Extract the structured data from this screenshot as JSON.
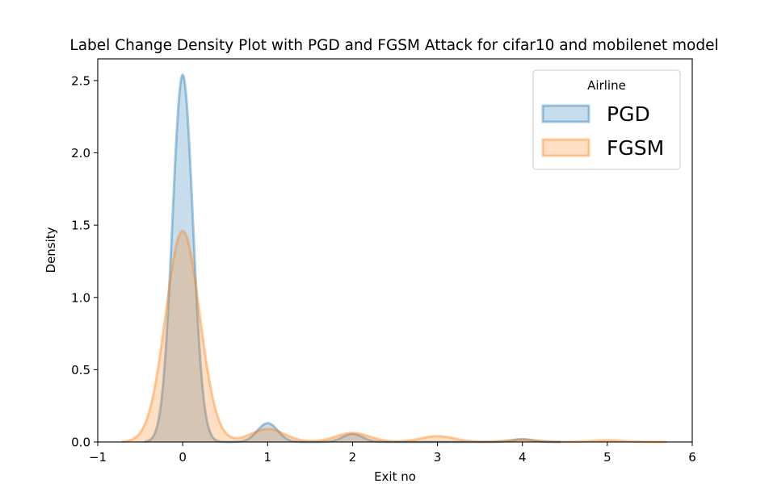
{
  "chart_data": {
    "type": "area",
    "title": "Label Change Density Plot with PGD and FGSM Attack for cifar10 and  mobilenet model",
    "xlabel": "Exit no",
    "ylabel": "Density",
    "xlim": [
      -1,
      6
    ],
    "ylim": [
      0,
      2.65
    ],
    "x_ticks": [
      -1,
      0,
      1,
      2,
      3,
      4,
      5,
      6
    ],
    "x_tick_labels": [
      "−1",
      "0",
      "1",
      "2",
      "3",
      "4",
      "5",
      "6"
    ],
    "y_ticks": [
      0.0,
      0.5,
      1.0,
      1.5,
      2.0,
      2.5
    ],
    "y_tick_labels": [
      "0.0",
      "0.5",
      "1.0",
      "1.5",
      "2.0",
      "2.5"
    ],
    "grid": false,
    "legend": {
      "title": "Airline",
      "placement": "upper right"
    },
    "series": [
      {
        "name": "PGD",
        "color": "#1f77b4",
        "x_range": [
          -0.45,
          4.45
        ],
        "components": [
          {
            "mu": 0,
            "sigma": 0.12,
            "peak": 2.54
          },
          {
            "mu": 1,
            "sigma": 0.12,
            "peak": 0.13
          },
          {
            "mu": 2,
            "sigma": 0.12,
            "peak": 0.055
          },
          {
            "mu": 4,
            "sigma": 0.12,
            "peak": 0.02
          }
        ]
      },
      {
        "name": "FGSM",
        "color": "#ff7f0e",
        "x_range": [
          -0.72,
          5.7
        ],
        "components": [
          {
            "mu": 0,
            "sigma": 0.2,
            "peak": 1.46
          },
          {
            "mu": 1,
            "sigma": 0.2,
            "peak": 0.09
          },
          {
            "mu": 2,
            "sigma": 0.2,
            "peak": 0.062
          },
          {
            "mu": 3,
            "sigma": 0.2,
            "peak": 0.04
          },
          {
            "mu": 4,
            "sigma": 0.2,
            "peak": 0.015
          },
          {
            "mu": 5,
            "sigma": 0.2,
            "peak": 0.012
          }
        ]
      }
    ]
  }
}
